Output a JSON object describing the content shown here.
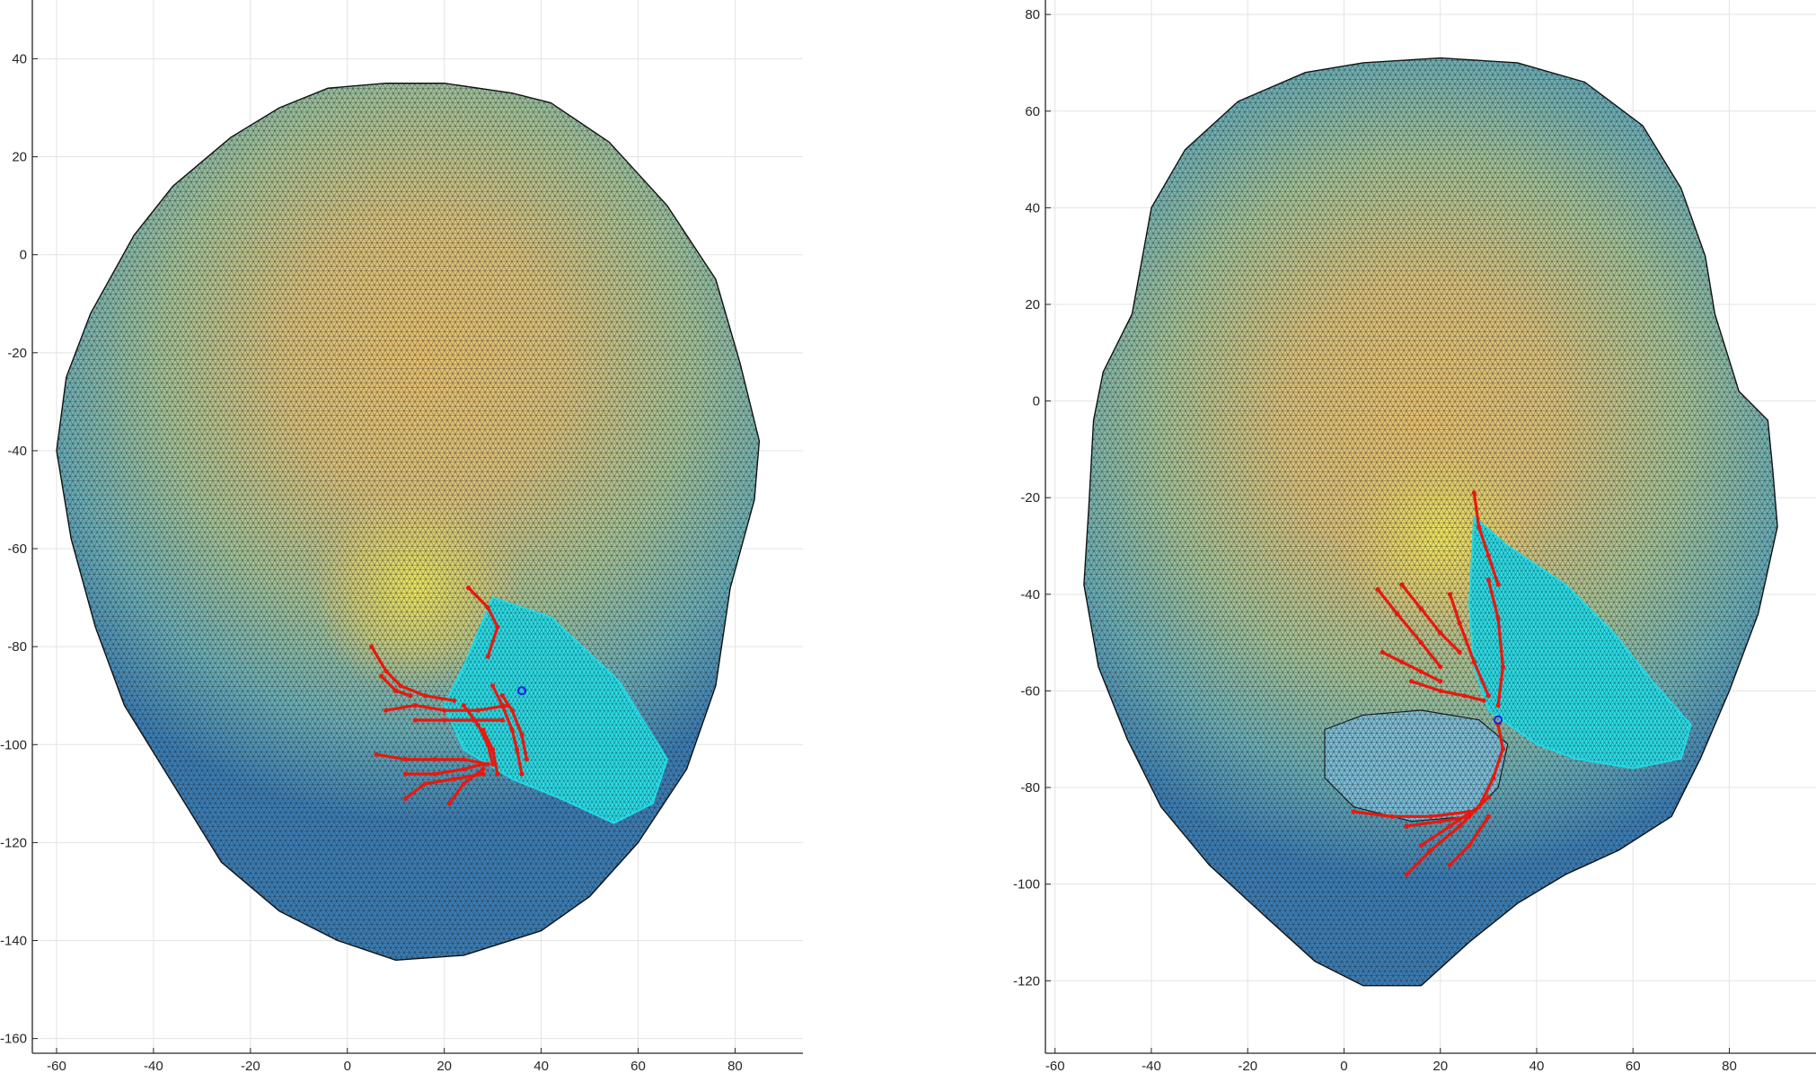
{
  "chart_data": [
    {
      "type": "surface-mesh",
      "title": "",
      "xlabel": "",
      "ylabel": "",
      "xlim": [
        -65,
        94
      ],
      "ylim": [
        -163,
        52
      ],
      "xticks": [
        -60,
        -40,
        -20,
        0,
        20,
        40,
        60,
        80
      ],
      "yticks": [
        -160,
        -140,
        -120,
        -100,
        -80,
        -60,
        -40,
        -20,
        0,
        20,
        40
      ],
      "grid": true,
      "colormap": "parula",
      "face_outline": [
        [
          -4,
          34
        ],
        [
          8,
          35
        ],
        [
          20,
          35
        ],
        [
          34,
          33
        ],
        [
          42,
          31
        ],
        [
          54,
          23
        ],
        [
          66,
          10
        ],
        [
          76,
          -5
        ],
        [
          81,
          -22
        ],
        [
          85,
          -38
        ],
        [
          84,
          -50
        ],
        [
          79,
          -68
        ],
        [
          76,
          -88
        ],
        [
          70,
          -105
        ],
        [
          60,
          -120
        ],
        [
          50,
          -131
        ],
        [
          40,
          -138
        ],
        [
          24,
          -143
        ],
        [
          10,
          -144
        ],
        [
          -2,
          -140
        ],
        [
          -14,
          -134
        ],
        [
          -26,
          -124
        ],
        [
          -36,
          -108
        ],
        [
          -46,
          -92
        ],
        [
          -52,
          -76
        ],
        [
          -57,
          -58
        ],
        [
          -60,
          -40
        ],
        [
          -58,
          -25
        ],
        [
          -53,
          -12
        ],
        [
          -44,
          4
        ],
        [
          -36,
          14
        ],
        [
          -24,
          24
        ],
        [
          -14,
          30
        ]
      ],
      "highlight_region": [
        [
          30,
          -70
        ],
        [
          42,
          -74
        ],
        [
          56,
          -87
        ],
        [
          66,
          -103
        ],
        [
          63,
          -112
        ],
        [
          55,
          -116
        ],
        [
          44,
          -111
        ],
        [
          34,
          -107
        ],
        [
          24,
          -101
        ],
        [
          20,
          -92
        ],
        [
          24,
          -84
        ]
      ],
      "red_paths": [
        [
          [
            25,
            -68
          ],
          [
            29,
            -72
          ],
          [
            31,
            -76
          ],
          [
            29,
            -82
          ]
        ],
        [
          [
            5,
            -80
          ],
          [
            8,
            -85
          ],
          [
            11,
            -88
          ],
          [
            16,
            -90
          ],
          [
            22,
            -91
          ]
        ],
        [
          [
            7,
            -86
          ],
          [
            10,
            -89
          ],
          [
            13,
            -90
          ]
        ],
        [
          [
            8,
            -93
          ],
          [
            14,
            -92
          ],
          [
            20,
            -93
          ],
          [
            27,
            -93
          ],
          [
            33,
            -92
          ]
        ],
        [
          [
            14,
            -95
          ],
          [
            20,
            -95
          ],
          [
            26,
            -95
          ],
          [
            32,
            -95
          ]
        ],
        [
          [
            24,
            -92
          ],
          [
            27,
            -96
          ],
          [
            29,
            -100
          ],
          [
            30,
            -104
          ]
        ],
        [
          [
            6,
            -102
          ],
          [
            12,
            -103
          ],
          [
            18,
            -103
          ],
          [
            24,
            -103
          ],
          [
            29,
            -104
          ]
        ],
        [
          [
            12,
            -106
          ],
          [
            18,
            -106
          ],
          [
            24,
            -105
          ],
          [
            28,
            -104
          ]
        ],
        [
          [
            12,
            -111
          ],
          [
            16,
            -108
          ],
          [
            22,
            -107
          ],
          [
            28,
            -106
          ]
        ],
        [
          [
            21,
            -112
          ],
          [
            24,
            -108
          ],
          [
            28,
            -105
          ]
        ],
        [
          [
            30,
            -88
          ],
          [
            32,
            -92
          ],
          [
            34,
            -97
          ],
          [
            35,
            -101
          ],
          [
            36,
            -106
          ]
        ],
        [
          [
            32,
            -90
          ],
          [
            34,
            -93
          ],
          [
            36,
            -98
          ],
          [
            37,
            -103
          ]
        ],
        [
          [
            28,
            -97
          ],
          [
            30,
            -101
          ],
          [
            31,
            -106
          ]
        ]
      ],
      "blue_marker": [
        36,
        -89
      ]
    },
    {
      "type": "surface-mesh",
      "title": "",
      "xlabel": "",
      "ylabel": "",
      "xlim": [
        -62,
        98
      ],
      "ylim": [
        -135,
        83
      ],
      "xticks": [
        -60,
        -40,
        -20,
        0,
        20,
        40,
        60,
        80
      ],
      "yticks": [
        -120,
        -100,
        -80,
        -60,
        -40,
        -20,
        0,
        20,
        40,
        60,
        80
      ],
      "grid": true,
      "colormap": "parula",
      "face_outline": [
        [
          -8,
          68
        ],
        [
          4,
          70
        ],
        [
          20,
          71
        ],
        [
          36,
          70
        ],
        [
          50,
          66
        ],
        [
          62,
          57
        ],
        [
          70,
          44
        ],
        [
          75,
          30
        ],
        [
          77,
          18
        ],
        [
          82,
          2
        ],
        [
          88,
          -4
        ],
        [
          89,
          -14
        ],
        [
          90,
          -26
        ],
        [
          86,
          -44
        ],
        [
          80,
          -60
        ],
        [
          74,
          -74
        ],
        [
          68,
          -86
        ],
        [
          57,
          -93
        ],
        [
          46,
          -98
        ],
        [
          36,
          -104
        ],
        [
          26,
          -112
        ],
        [
          16,
          -121
        ],
        [
          4,
          -121
        ],
        [
          -6,
          -116
        ],
        [
          -16,
          -107
        ],
        [
          -28,
          -96
        ],
        [
          -38,
          -84
        ],
        [
          -45,
          -70
        ],
        [
          -51,
          -55
        ],
        [
          -54,
          -38
        ],
        [
          -53,
          -22
        ],
        [
          -52,
          -4
        ],
        [
          -50,
          6
        ],
        [
          -44,
          18
        ],
        [
          -40,
          40
        ],
        [
          -33,
          52
        ],
        [
          -22,
          62
        ]
      ],
      "mouth_region": [
        [
          -4,
          -68
        ],
        [
          4,
          -65
        ],
        [
          16,
          -64
        ],
        [
          28,
          -66
        ],
        [
          34,
          -71
        ],
        [
          32,
          -80
        ],
        [
          26,
          -86
        ],
        [
          14,
          -87
        ],
        [
          2,
          -84
        ],
        [
          -4,
          -78
        ]
      ],
      "highlight_region": [
        [
          27,
          -24
        ],
        [
          34,
          -30
        ],
        [
          46,
          -38
        ],
        [
          56,
          -48
        ],
        [
          64,
          -58
        ],
        [
          72,
          -67
        ],
        [
          70,
          -74
        ],
        [
          60,
          -76
        ],
        [
          48,
          -74
        ],
        [
          40,
          -71
        ],
        [
          30,
          -64
        ],
        [
          27,
          -55
        ],
        [
          26,
          -42
        ]
      ],
      "red_paths": [
        [
          [
            27,
            -19
          ],
          [
            28,
            -26
          ],
          [
            30,
            -32
          ],
          [
            32,
            -38
          ]
        ],
        [
          [
            7,
            -39
          ],
          [
            11,
            -44
          ],
          [
            16,
            -50
          ],
          [
            20,
            -55
          ]
        ],
        [
          [
            12,
            -38
          ],
          [
            16,
            -43
          ],
          [
            20,
            -48
          ],
          [
            24,
            -52
          ]
        ],
        [
          [
            8,
            -52
          ],
          [
            12,
            -54
          ],
          [
            16,
            -56
          ],
          [
            20,
            -58
          ]
        ],
        [
          [
            14,
            -58
          ],
          [
            20,
            -60
          ],
          [
            25,
            -61
          ],
          [
            29,
            -62
          ]
        ],
        [
          [
            22,
            -40
          ],
          [
            24,
            -46
          ],
          [
            27,
            -54
          ],
          [
            30,
            -61
          ]
        ],
        [
          [
            30,
            -37
          ],
          [
            32,
            -45
          ],
          [
            33,
            -55
          ],
          [
            32,
            -63
          ]
        ],
        [
          [
            32,
            -67
          ],
          [
            33,
            -72
          ],
          [
            31,
            -78
          ],
          [
            28,
            -84
          ]
        ],
        [
          [
            2,
            -85
          ],
          [
            10,
            -86
          ],
          [
            18,
            -86
          ],
          [
            26,
            -85
          ]
        ],
        [
          [
            13,
            -88
          ],
          [
            20,
            -87
          ],
          [
            26,
            -86
          ]
        ],
        [
          [
            16,
            -92
          ],
          [
            22,
            -88
          ],
          [
            28,
            -84
          ]
        ],
        [
          [
            13,
            -98
          ],
          [
            18,
            -93
          ],
          [
            24,
            -88
          ],
          [
            30,
            -82
          ]
        ],
        [
          [
            22,
            -96
          ],
          [
            26,
            -92
          ],
          [
            30,
            -86
          ]
        ]
      ],
      "blue_marker": [
        32,
        -66
      ]
    }
  ]
}
